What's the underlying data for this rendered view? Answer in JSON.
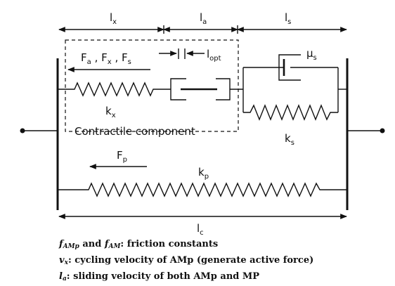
{
  "labels": {
    "lx_main": "l",
    "lx_sub": "x",
    "la_main": "l",
    "la_sub": "a",
    "ls_main": "l",
    "ls_sub": "s",
    "lc_main": "l",
    "lc_sub": "c",
    "forces": {
      "fa_main": "F",
      "fa_sub": "a",
      "fx_main": "F",
      "fx_sub": "x",
      "fs_main": "F",
      "fs_sub": "s",
      "sep": ","
    },
    "lopt_main": "l",
    "lopt_sub": "opt",
    "mu_main": "μ",
    "mu_sub": "s",
    "kx_main": "k",
    "kx_sub": "x",
    "ks_main": "k",
    "ks_sub": "s",
    "fp_main": "F",
    "fp_sub": "p",
    "kp_main": "k",
    "kp_sub": "p",
    "contractile": "Contractile component"
  },
  "legend": {
    "line1": {
      "sym1": "f",
      "sym1_sub": "AMp",
      "and": "and",
      "sym2": "f",
      "sym2_sub": "AM",
      "text": ": friction constants"
    },
    "line2": {
      "sym": "v",
      "sym_sub": "x",
      "text": ": cycling velocity of AMp (generate active force)"
    },
    "line3": {
      "sym": "l",
      "sym_sub": "a",
      "text": ": sliding velocity of both AMp and MP"
    }
  }
}
